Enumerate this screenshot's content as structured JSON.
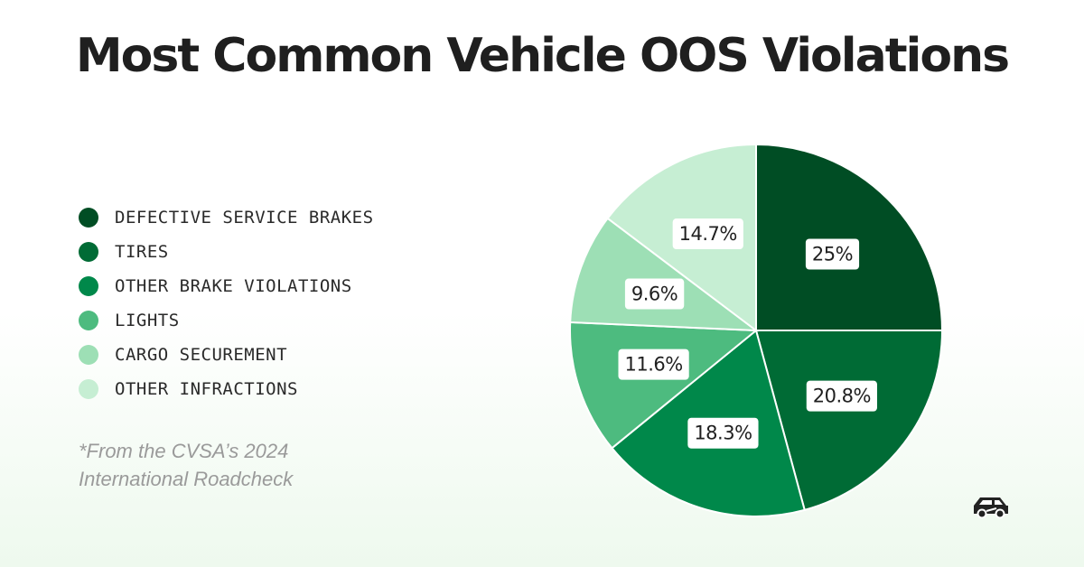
{
  "title": "Most Common Vehicle OOS Violations",
  "footnote": {
    "line1": "*From the CVSA’s 2024",
    "line2": "International Roadcheck"
  },
  "logo_icon": "truck-logo-icon",
  "chart_data": {
    "type": "pie",
    "title": "Most Common Vehicle OOS Violations",
    "legend_position": "left",
    "series": [
      {
        "name": "DEFECTIVE SERVICE BRAKES",
        "value": 25,
        "label": "25%",
        "color": "#004d24"
      },
      {
        "name": "TIRES",
        "value": 20.8,
        "label": "20.8%",
        "color": "#006b35"
      },
      {
        "name": "OTHER BRAKE VIOLATIONS",
        "value": 18.3,
        "label": "18.3%",
        "color": "#00884a"
      },
      {
        "name": "LIGHTS",
        "value": 11.6,
        "label": "11.6%",
        "color": "#4dbb7f"
      },
      {
        "name": "CARGO SECUREMENT",
        "value": 9.6,
        "label": "9.6%",
        "color": "#9ddfb5"
      },
      {
        "name": "OTHER INFRACTIONS",
        "value": 14.7,
        "label": "14.7%",
        "color": "#c6eed3"
      }
    ]
  }
}
